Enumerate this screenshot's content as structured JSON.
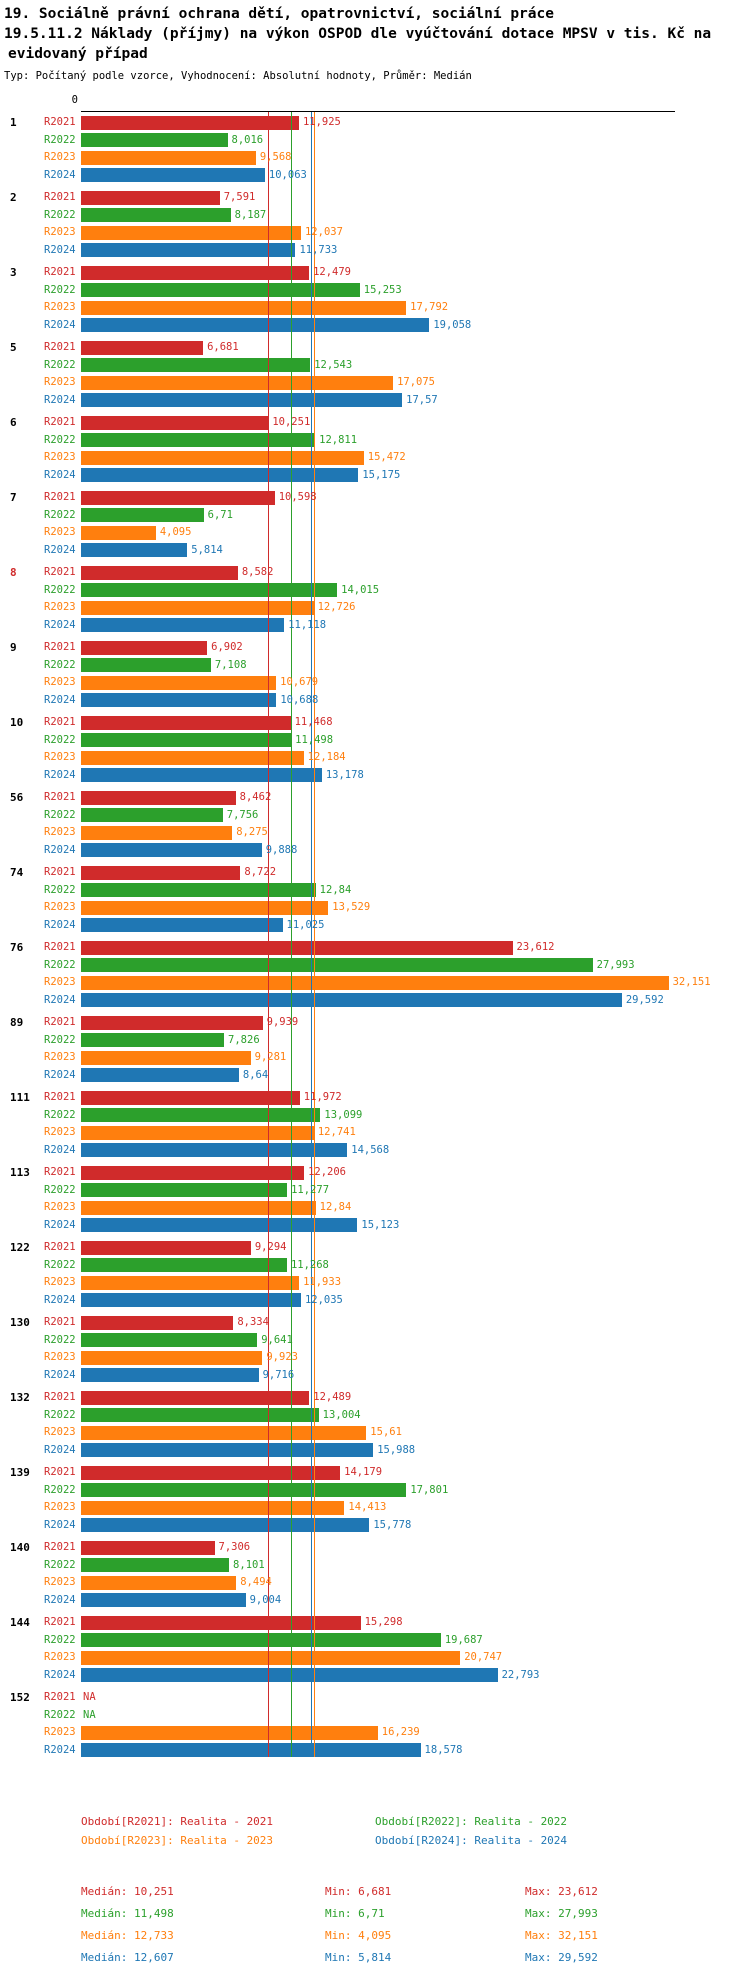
{
  "title": {
    "line1": "19. Sociálně právní ochrana dětí, opatrovnictví, sociální práce",
    "line2": "19.5.11.2 Náklady (příjmy) na výkon OSPOD dle vyúčtování dotace MPSV v tis. Kč na",
    "line3": "evidovaný případ"
  },
  "subtitle": "Typ: Počítaný podle vzorce, Vyhodnocení: Absolutní hodnoty, Průměr: Medián",
  "axis": {
    "zero_label": "0"
  },
  "highlight_color": "#d02b2b",
  "chart_data": {
    "type": "bar",
    "orientation": "horizontal",
    "title": "19.5.11.2 Náklady (příjmy) na výkon OSPOD dle vyúčtování dotace MPSV v tis. Kč na evidovaný případ",
    "unit": "tis. Kč na evidovaný případ",
    "decimal_separator": ",",
    "xlim": [
      0,
      32.5
    ],
    "grid": false,
    "highlighted_category": "8",
    "series": [
      {
        "key": "R2021",
        "label": "R2021",
        "color": "#d02b2b",
        "median": 10.251
      },
      {
        "key": "R2022",
        "label": "R2022",
        "color": "#2ca02c",
        "median": 11.498
      },
      {
        "key": "R2023",
        "label": "R2023",
        "color": "#ff7f0e",
        "median": 12.733
      },
      {
        "key": "R2024",
        "label": "R2024",
        "color": "#1f77b4",
        "median": 12.607
      }
    ],
    "groups": [
      {
        "id": "1",
        "values": [
          "11,925",
          "8,016",
          "9,568",
          "10,063"
        ]
      },
      {
        "id": "2",
        "values": [
          "7,591",
          "8,187",
          "12,037",
          "11,733"
        ]
      },
      {
        "id": "3",
        "values": [
          "12,479",
          "15,253",
          "17,792",
          "19,058"
        ]
      },
      {
        "id": "5",
        "values": [
          "6,681",
          "12,543",
          "17,075",
          "17,57"
        ]
      },
      {
        "id": "6",
        "values": [
          "10,251",
          "12,811",
          "15,472",
          "15,175"
        ]
      },
      {
        "id": "7",
        "values": [
          "10,598",
          "6,71",
          "4,095",
          "5,814"
        ]
      },
      {
        "id": "8",
        "values": [
          "8,582",
          "14,015",
          "12,726",
          "11,118"
        ]
      },
      {
        "id": "9",
        "values": [
          "6,902",
          "7,108",
          "10,679",
          "10,688"
        ]
      },
      {
        "id": "10",
        "values": [
          "11,468",
          "11,498",
          "12,184",
          "13,178"
        ]
      },
      {
        "id": "56",
        "values": [
          "8,462",
          "7,756",
          "8,275",
          "9,888"
        ]
      },
      {
        "id": "74",
        "values": [
          "8,722",
          "12,84",
          "13,529",
          "11,025"
        ]
      },
      {
        "id": "76",
        "values": [
          "23,612",
          "27,993",
          "32,151",
          "29,592"
        ]
      },
      {
        "id": "89",
        "values": [
          "9,939",
          "7,826",
          "9,281",
          "8,64"
        ]
      },
      {
        "id": "111",
        "values": [
          "11,972",
          "13,099",
          "12,741",
          "14,568"
        ]
      },
      {
        "id": "113",
        "values": [
          "12,206",
          "11,277",
          "12,84",
          "15,123"
        ]
      },
      {
        "id": "122",
        "values": [
          "9,294",
          "11,268",
          "11,933",
          "12,035"
        ]
      },
      {
        "id": "130",
        "values": [
          "8,334",
          "9,641",
          "9,923",
          "9,716"
        ]
      },
      {
        "id": "132",
        "values": [
          "12,489",
          "13,004",
          "15,61",
          "15,988"
        ]
      },
      {
        "id": "139",
        "values": [
          "14,179",
          "17,801",
          "14,413",
          "15,778"
        ]
      },
      {
        "id": "140",
        "values": [
          "7,306",
          "8,101",
          "8,494",
          "9,004"
        ]
      },
      {
        "id": "144",
        "values": [
          "15,298",
          "19,687",
          "20,747",
          "22,793"
        ]
      },
      {
        "id": "152",
        "values": [
          "NA",
          "NA",
          "16,239",
          "18,578"
        ]
      }
    ]
  },
  "legend": [
    {
      "label": "Období[R2021]: Realita - 2021",
      "color": "#d02b2b"
    },
    {
      "label": "Období[R2022]: Realita - 2022",
      "color": "#2ca02c"
    },
    {
      "label": "Období[R2023]: Realita - 2023",
      "color": "#ff7f0e"
    },
    {
      "label": "Období[R2024]: Realita - 2024",
      "color": "#1f77b4"
    }
  ],
  "stats": [
    {
      "median": "Medián: 10,251",
      "min": "Min: 6,681",
      "max": "Max: 23,612",
      "color": "#d02b2b"
    },
    {
      "median": "Medián: 11,498",
      "min": "Min: 6,71",
      "max": "Max: 27,993",
      "color": "#2ca02c"
    },
    {
      "median": "Medián: 12,733",
      "min": "Min: 4,095",
      "max": "Max: 32,151",
      "color": "#ff7f0e"
    },
    {
      "median": "Medián: 12,607",
      "min": "Min: 5,814",
      "max": "Max: 29,592",
      "color": "#1f77b4"
    }
  ]
}
